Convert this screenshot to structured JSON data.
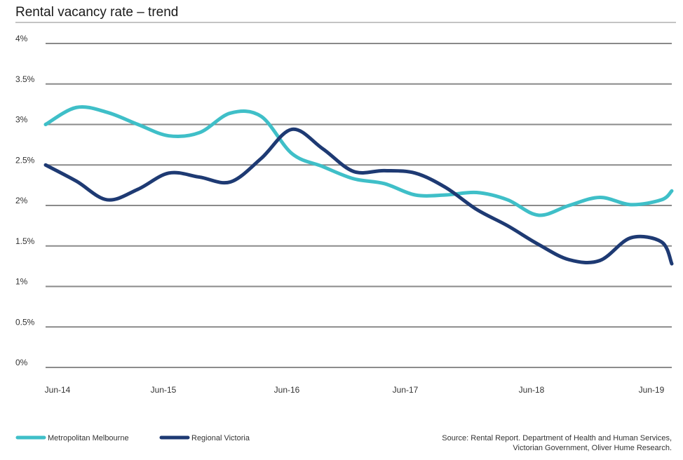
{
  "chart_data": {
    "type": "line",
    "title": "Rental vacancy rate – trend",
    "xlabel": "",
    "ylabel": "",
    "x_labels": [
      "Jun-14",
      "Jun-15",
      "Jun-16",
      "Jun-17",
      "Jun-18",
      "Jun-19"
    ],
    "x_range": [
      "2014-06",
      "2019-06"
    ],
    "y_ticks": [
      0,
      0.5,
      1,
      1.5,
      2,
      2.5,
      3,
      3.5,
      4
    ],
    "y_tick_labels": [
      "0%",
      "0.5%",
      "1%",
      "1.5%",
      "2%",
      "2.5%",
      "3%",
      "3.5%",
      "4%"
    ],
    "ylim": [
      0,
      4
    ],
    "grid": true,
    "legend_position": "bottom-left",
    "series": [
      {
        "name": "Metropolitan Melbourne",
        "color": "#3fbfc8",
        "points": [
          [
            "2014-06",
            3.0
          ],
          [
            "2014-09",
            3.21
          ],
          [
            "2014-12",
            3.15
          ],
          [
            "2015-03",
            3.0
          ],
          [
            "2015-06",
            2.86
          ],
          [
            "2015-09",
            2.9
          ],
          [
            "2015-12",
            3.14
          ],
          [
            "2016-03",
            3.1
          ],
          [
            "2016-06",
            2.64
          ],
          [
            "2016-09",
            2.48
          ],
          [
            "2016-12",
            2.33
          ],
          [
            "2017-03",
            2.27
          ],
          [
            "2017-06",
            2.13
          ],
          [
            "2017-09",
            2.13
          ],
          [
            "2017-12",
            2.16
          ],
          [
            "2018-03",
            2.07
          ],
          [
            "2018-06",
            1.88
          ],
          [
            "2018-09",
            2.0
          ],
          [
            "2018-12",
            2.1
          ],
          [
            "2019-03",
            2.01
          ],
          [
            "2019-06",
            2.07
          ],
          [
            "2019-07",
            2.18
          ]
        ]
      },
      {
        "name": "Regional Victoria",
        "color": "#1e3a73",
        "points": [
          [
            "2014-06",
            2.5
          ],
          [
            "2014-09",
            2.3
          ],
          [
            "2014-12",
            2.07
          ],
          [
            "2015-03",
            2.2
          ],
          [
            "2015-06",
            2.4
          ],
          [
            "2015-09",
            2.35
          ],
          [
            "2015-12",
            2.29
          ],
          [
            "2016-03",
            2.58
          ],
          [
            "2016-06",
            2.94
          ],
          [
            "2016-09",
            2.7
          ],
          [
            "2016-12",
            2.42
          ],
          [
            "2017-03",
            2.43
          ],
          [
            "2017-06",
            2.4
          ],
          [
            "2017-09",
            2.22
          ],
          [
            "2017-12",
            1.95
          ],
          [
            "2018-03",
            1.75
          ],
          [
            "2018-06",
            1.52
          ],
          [
            "2018-09",
            1.33
          ],
          [
            "2018-12",
            1.32
          ],
          [
            "2019-03",
            1.6
          ],
          [
            "2019-06",
            1.55
          ],
          [
            "2019-07",
            1.28
          ]
        ]
      }
    ],
    "source": [
      "Source: Rental Report. Department of Health and Human Services,",
      "Victorian Government, Oliver Hume Research."
    ]
  }
}
